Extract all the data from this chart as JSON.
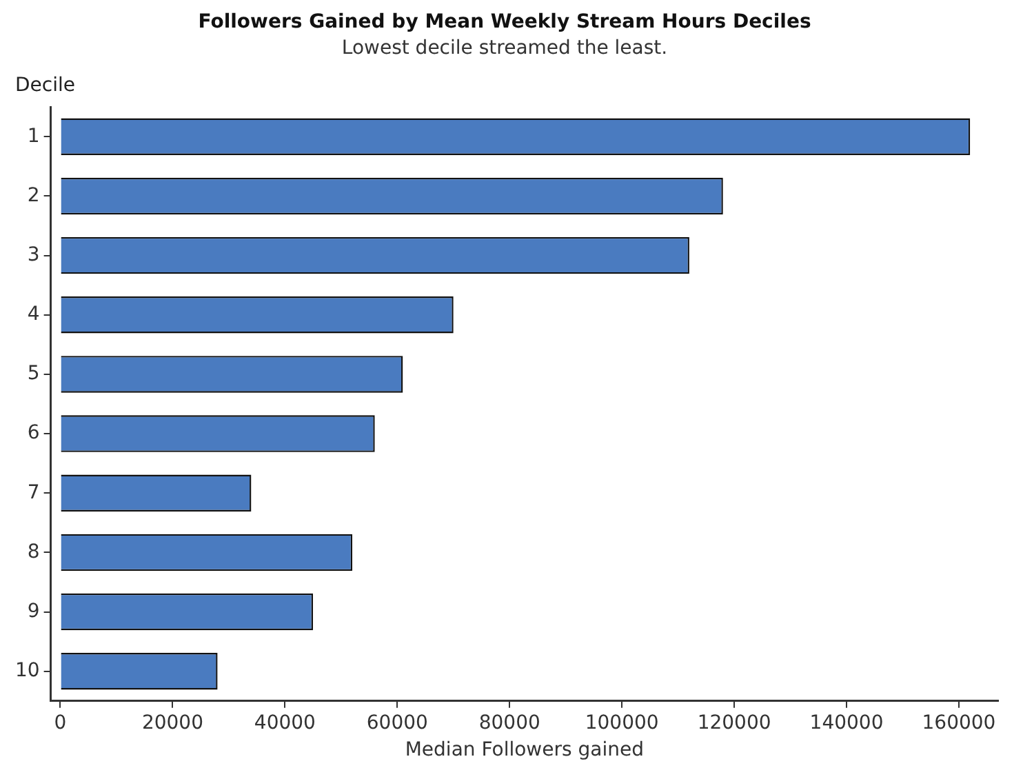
{
  "chart_data": {
    "type": "bar",
    "orientation": "horizontal",
    "title": "Followers Gained by Mean Weekly Stream Hours Deciles",
    "subtitle": "Lowest decile streamed the least.",
    "xlabel": "Median Followers gained",
    "ylabel": "Decile",
    "categories": [
      "1",
      "2",
      "3",
      "4",
      "5",
      "6",
      "7",
      "8",
      "9",
      "10"
    ],
    "values": [
      162000,
      118000,
      112000,
      70000,
      61000,
      56000,
      34000,
      52000,
      45000,
      28000
    ],
    "color": "#4a7bc0",
    "xlim": [
      -1700,
      167000
    ],
    "xticks": [
      0,
      20000,
      40000,
      60000,
      80000,
      100000,
      120000,
      140000,
      160000
    ],
    "grid": false,
    "legend": false
  }
}
